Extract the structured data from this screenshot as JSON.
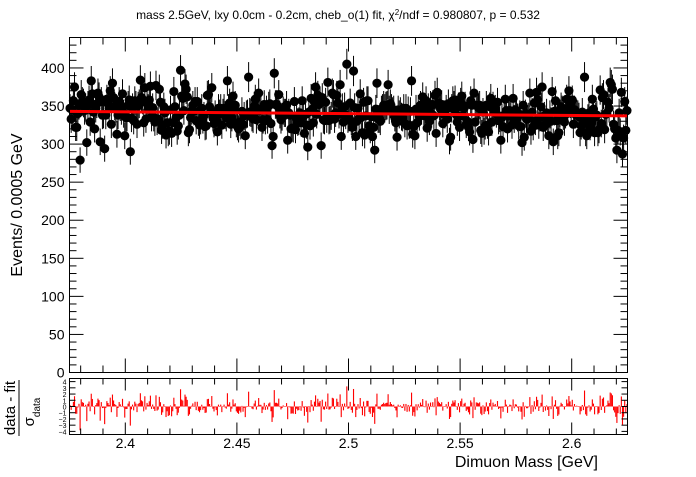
{
  "chart_data": [
    {
      "type": "scatter",
      "panel": "main",
      "title": "mass 2.5GeV, lxy 0.0cm - 0.2cm, cheb_o(1) fit, χ²/ndf = 0.980807, p = 0.532",
      "title_parts": {
        "prefix": "mass 2.5GeV, lxy 0.0cm - 0.2cm, cheb_o(1) fit, χ",
        "sup": "2",
        "suffix": "/ndf = 0.980807, p = 0.532"
      },
      "ylabel": "Events/ 0.0005 GeV",
      "xlim": [
        2.375,
        2.625
      ],
      "ylim": [
        0,
        440
      ],
      "yticks": [
        0,
        50,
        100,
        150,
        200,
        250,
        300,
        350,
        400
      ],
      "ytick_labels": [
        "0",
        "50",
        "100",
        "150",
        "200",
        "250",
        "300",
        "350",
        "400"
      ],
      "grid": false,
      "bin_width": 0.0005,
      "n_bins": 500,
      "series": [
        {
          "kind": "data",
          "marker_color": "#000000",
          "errorbar": "sqrt(N)",
          "mean": 342,
          "spread": 18,
          "min": 279,
          "max": 405,
          "note_values": [
            {
              "x": 2.3775,
              "y": 375
            },
            {
              "x": 2.3795,
              "y": 279
            },
            {
              "x": 2.3885,
              "y": 303
            },
            {
              "x": 2.3945,
              "y": 380
            },
            {
              "x": 2.4025,
              "y": 290
            },
            {
              "x": 2.4185,
              "y": 312
            },
            {
              "x": 2.4245,
              "y": 397
            },
            {
              "x": 2.4455,
              "y": 383
            },
            {
              "x": 2.4655,
              "y": 298
            },
            {
              "x": 2.4995,
              "y": 405
            },
            {
              "x": 2.5025,
              "y": 396
            },
            {
              "x": 2.5285,
              "y": 313
            },
            {
              "x": 2.5775,
              "y": 302
            },
            {
              "x": 2.5865,
              "y": 375
            },
            {
              "x": 2.5985,
              "y": 370
            },
            {
              "x": 2.6055,
              "y": 388
            },
            {
              "x": 2.6235,
              "y": 308
            }
          ]
        },
        {
          "kind": "fit",
          "color": "#ff0000",
          "x": [
            2.375,
            2.625
          ],
          "y": [
            343,
            337
          ]
        }
      ]
    },
    {
      "type": "bar",
      "panel": "pull",
      "xlabel": "Dimuon Mass [GeV]",
      "ylabel_parts": {
        "num": "data - fit",
        "den": "σ",
        "den_sub": "data"
      },
      "xlim": [
        2.375,
        2.625
      ],
      "ylim": [
        -4.5,
        4.5
      ],
      "xticks": [
        2.4,
        2.45,
        2.5,
        2.55,
        2.6
      ],
      "xtick_labels": [
        "2.4",
        "2.45",
        "2.5",
        "2.55",
        "2.6"
      ],
      "yticks": [
        -4,
        -3,
        -2,
        -1,
        0,
        1,
        2,
        3,
        4
      ],
      "ytick_labels": [
        "−4",
        "−3",
        "−2",
        "−1",
        "0",
        "1",
        "2",
        "3",
        "4"
      ],
      "color": "#ff0000",
      "n_bins": 500,
      "values_note": "pull = (data - fit) / sqrt(data) per bin"
    }
  ]
}
